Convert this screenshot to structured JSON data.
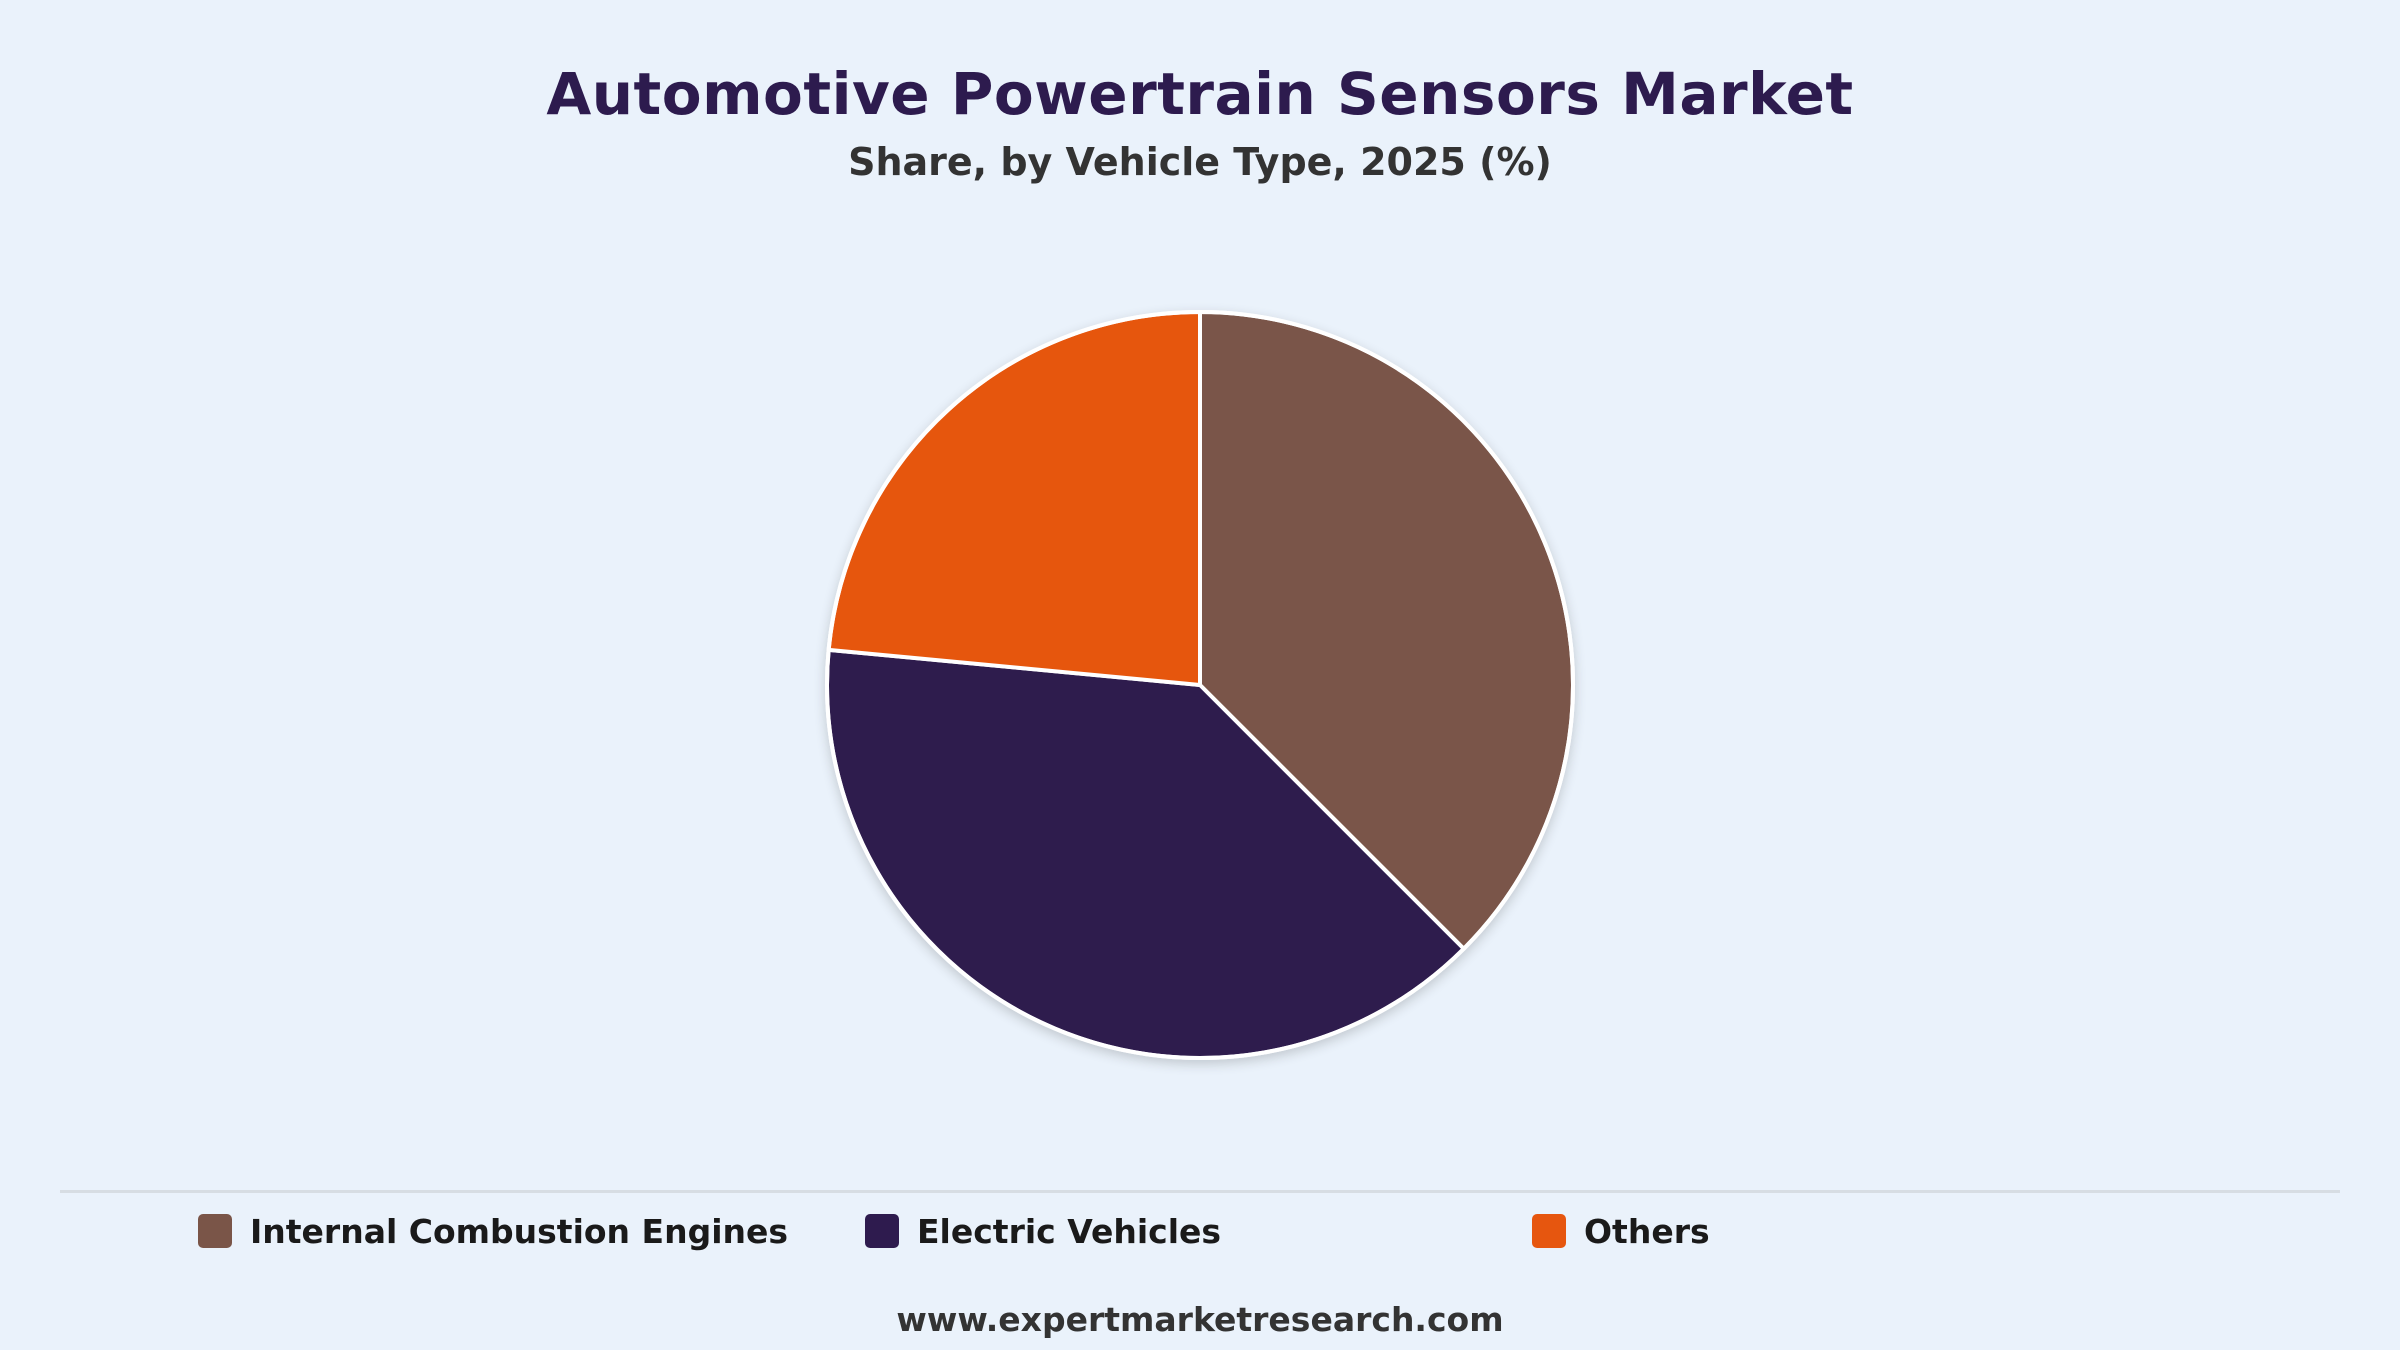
{
  "header": {
    "title": "Automotive Powertrain Sensors Market",
    "subtitle": "Share, by Vehicle Type, 2025 (%)"
  },
  "chart_data": {
    "type": "pie",
    "title": "Automotive Powertrain Sensors Market",
    "subtitle": "Share, by Vehicle Type, 2025 (%)",
    "categories": [
      "Internal Combustion Engines",
      "Electric Vehicles",
      "Others"
    ],
    "values": [
      37.5,
      39.0,
      23.5
    ],
    "colors": [
      "#7a5548",
      "#2e1b4e",
      "#e6560f"
    ],
    "start_angle_deg": 0,
    "direction": "clockwise",
    "legend_placement": "bottom"
  },
  "legend": {
    "items": [
      {
        "label": "Internal Combustion Engines",
        "color": "#7a5548"
      },
      {
        "label": "Electric Vehicles",
        "color": "#2e1b4e"
      },
      {
        "label": "Others",
        "color": "#e6560f"
      }
    ]
  },
  "footer": {
    "source": "www.expertmarketresearch.com"
  }
}
